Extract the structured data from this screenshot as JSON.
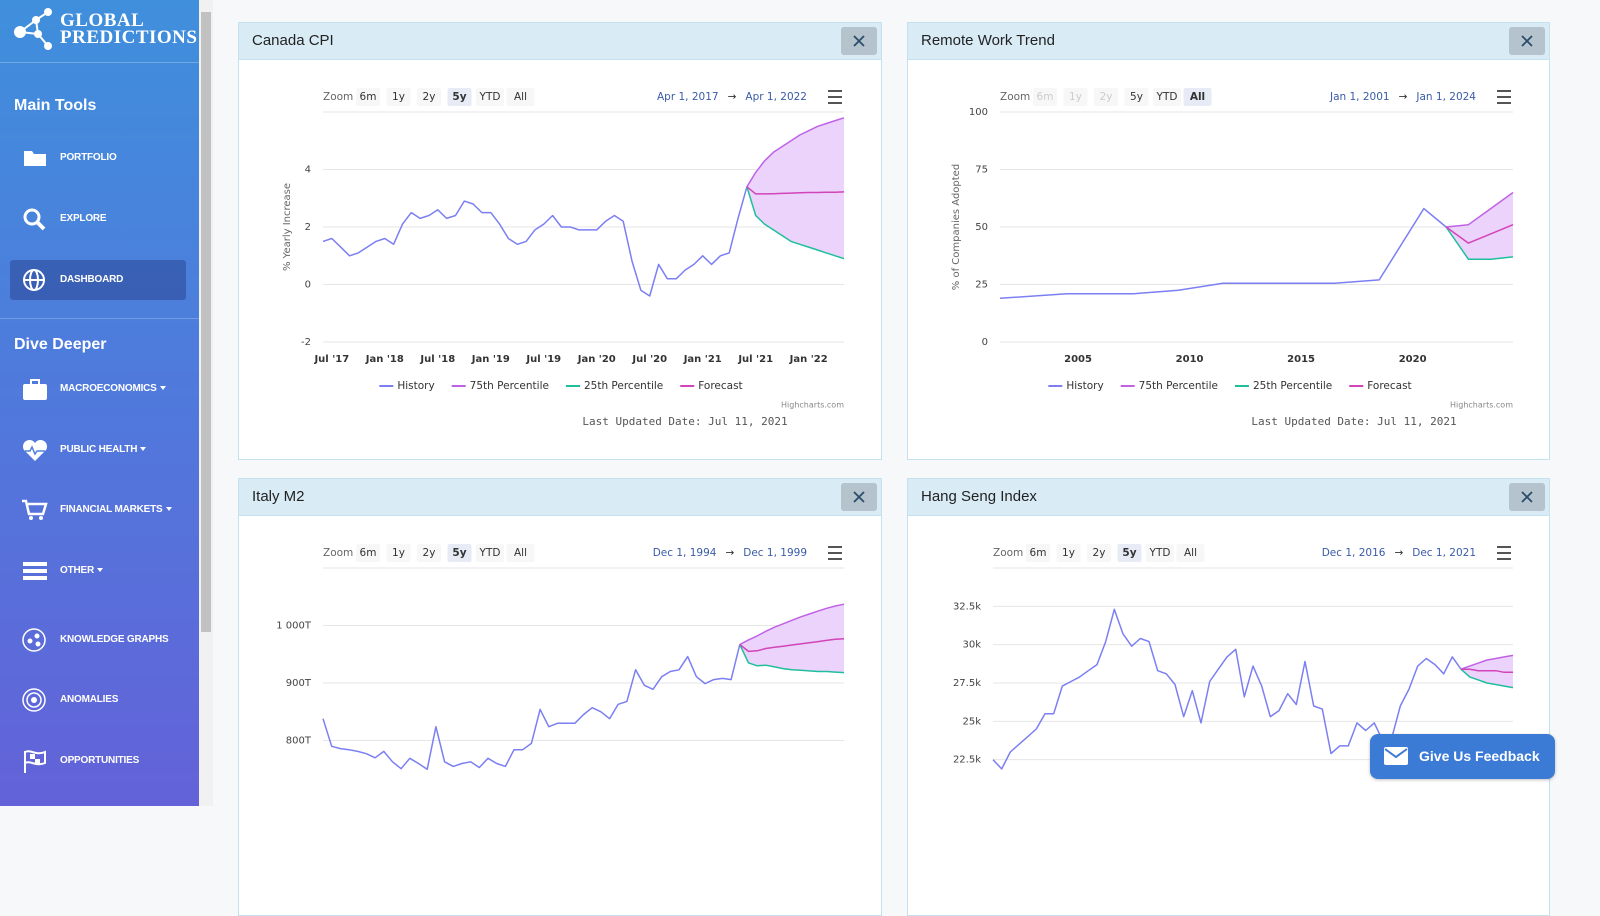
{
  "sidebar": {
    "logo": [
      "GLOBAL",
      "PREDICTIONS"
    ],
    "sections": [
      {
        "heading": "Main Tools",
        "items": [
          {
            "label": "PORTFOLIO"
          },
          {
            "label": "EXPLORE"
          },
          {
            "label": "DASHBOARD",
            "active": true
          }
        ]
      },
      {
        "heading": "Dive Deeper",
        "items": [
          {
            "label": "MACROECONOMICS",
            "dropdown": true
          },
          {
            "label": "PUBLIC HEALTH",
            "dropdown": true
          },
          {
            "label": "FINANCIAL MARKETS",
            "dropdown": true
          },
          {
            "label": "OTHER",
            "dropdown": true
          },
          {
            "label": "KNOWLEDGE GRAPHS"
          },
          {
            "label": "ANOMALIES"
          },
          {
            "label": "OPPORTUNITIES"
          }
        ]
      }
    ]
  },
  "feedback": "Give Us Feedback",
  "chart_data": [
    {
      "type": "line",
      "title": "Canada CPI",
      "zoom": {
        "label": "Zoom",
        "buttons": [
          "6m",
          "1y",
          "2y",
          "5y",
          "YTD",
          "All"
        ],
        "selected": 3,
        "disabled": []
      },
      "range": {
        "from": "Apr 1, 2017",
        "separator": "→",
        "to": "Apr 1, 2022"
      },
      "y_label": "% Yearly Increase",
      "xlim": [
        "2017-06",
        "2022-05"
      ],
      "xticks": [
        {
          "value": "2017-07",
          "label": "Jul '17"
        },
        {
          "value": "2018-01",
          "label": "Jan '18"
        },
        {
          "value": "2018-07",
          "label": "Jul '18"
        },
        {
          "value": "2019-01",
          "label": "Jan '19"
        },
        {
          "value": "2019-07",
          "label": "Jul '19"
        },
        {
          "value": "2020-01",
          "label": "Jan '20"
        },
        {
          "value": "2020-07",
          "label": "Jul '20"
        },
        {
          "value": "2021-01",
          "label": "Jan '21"
        },
        {
          "value": "2021-07",
          "label": "Jul '21"
        },
        {
          "value": "2022-01",
          "label": "Jan '22"
        }
      ],
      "ylim": [
        -2,
        6
      ],
      "yticks": [
        -2,
        0,
        2,
        4
      ],
      "grid": true,
      "band_color": "#ebd3fb",
      "series": [
        {
          "name": "History",
          "color": "#7b7ff2",
          "x": [
            "2017-06",
            "2017-07",
            "2017-08",
            "2017-09",
            "2017-10",
            "2017-11",
            "2017-12",
            "2018-01",
            "2018-02",
            "2018-03",
            "2018-04",
            "2018-05",
            "2018-06",
            "2018-07",
            "2018-08",
            "2018-09",
            "2018-10",
            "2018-11",
            "2018-12",
            "2019-01",
            "2019-02",
            "2019-03",
            "2019-04",
            "2019-05",
            "2019-06",
            "2019-07",
            "2019-08",
            "2019-09",
            "2019-10",
            "2019-11",
            "2019-12",
            "2020-01",
            "2020-02",
            "2020-03",
            "2020-04",
            "2020-05",
            "2020-06",
            "2020-07",
            "2020-08",
            "2020-09",
            "2020-10",
            "2020-11",
            "2020-12",
            "2021-01",
            "2021-02",
            "2021-03",
            "2021-04",
            "2021-05",
            "2021-06"
          ],
          "values": [
            1.5,
            1.6,
            1.3,
            1.0,
            1.1,
            1.3,
            1.5,
            1.6,
            1.4,
            2.1,
            2.5,
            2.3,
            2.4,
            2.6,
            2.3,
            2.4,
            2.9,
            2.8,
            2.5,
            2.5,
            2.1,
            1.6,
            1.4,
            1.5,
            1.9,
            2.1,
            2.4,
            2.0,
            2.0,
            1.9,
            1.9,
            1.9,
            2.2,
            2.4,
            2.2,
            0.8,
            -0.2,
            -0.4,
            0.7,
            0.2,
            0.2,
            0.5,
            0.7,
            1.0,
            0.7,
            1.0,
            1.1,
            2.3,
            3.4
          ]
        },
        {
          "name": "75th Percentile",
          "color": "#c062e6",
          "x": [
            "2021-06",
            "2021-07",
            "2021-08",
            "2021-09",
            "2021-10",
            "2021-11",
            "2021-12",
            "2022-01",
            "2022-02",
            "2022-03",
            "2022-04",
            "2022-05"
          ],
          "values": [
            3.4,
            3.9,
            4.3,
            4.6,
            4.8,
            5.0,
            5.2,
            5.35,
            5.5,
            5.6,
            5.7,
            5.8
          ]
        },
        {
          "name": "25th Percentile",
          "color": "#1fbf9d",
          "x": [
            "2021-06",
            "2021-07",
            "2021-08",
            "2021-09",
            "2021-10",
            "2021-11",
            "2021-12",
            "2022-01",
            "2022-02",
            "2022-03",
            "2022-04",
            "2022-05"
          ],
          "values": [
            3.4,
            2.4,
            2.1,
            1.9,
            1.7,
            1.5,
            1.4,
            1.3,
            1.2,
            1.1,
            1.0,
            0.9
          ]
        },
        {
          "name": "Forecast",
          "color": "#d244b9",
          "x": [
            "2021-06",
            "2021-07",
            "2021-08",
            "2021-09",
            "2021-10",
            "2021-11",
            "2021-12",
            "2022-01",
            "2022-02",
            "2022-03",
            "2022-04",
            "2022-05"
          ],
          "values": [
            3.4,
            3.15,
            3.15,
            3.16,
            3.17,
            3.18,
            3.19,
            3.2,
            3.2,
            3.21,
            3.21,
            3.22
          ]
        }
      ],
      "credits": "Highcharts.com",
      "updated": "Last Updated Date: Jul 11, 2021"
    },
    {
      "type": "line",
      "title": "Remote Work Trend",
      "zoom": {
        "label": "Zoom",
        "buttons": [
          "6m",
          "1y",
          "2y",
          "5y",
          "YTD",
          "All"
        ],
        "selected": 5,
        "disabled": [
          0,
          1,
          2
        ]
      },
      "range": {
        "from": "Jan 1, 2001",
        "separator": "→",
        "to": "Jan 1, 2024"
      },
      "y_label": "% of Companies Adopted",
      "xlim": [
        2001.5,
        2024.5
      ],
      "xticks": [
        2005,
        2010,
        2015,
        2020
      ],
      "ylim": [
        0,
        100
      ],
      "yticks": [
        0,
        25,
        50,
        75,
        100
      ],
      "grid": true,
      "band_color": "#ebd3fb",
      "series": [
        {
          "name": "History",
          "color": "#7b7ff2",
          "x": [
            2001.5,
            2004.5,
            2007.5,
            2009.5,
            2011.5,
            2016.5,
            2018.5,
            2020.5,
            2021.5
          ],
          "values": [
            19,
            21,
            21,
            22.5,
            25.5,
            25.5,
            27,
            58,
            50
          ]
        },
        {
          "name": "75th Percentile",
          "color": "#c062e6",
          "x": [
            2021.5,
            2022.5,
            2023.5,
            2024.5
          ],
          "values": [
            50,
            51,
            58,
            65
          ]
        },
        {
          "name": "25th Percentile",
          "color": "#1fbf9d",
          "x": [
            2021.5,
            2022.5,
            2023.5,
            2024.5
          ],
          "values": [
            50,
            36,
            36,
            37
          ]
        },
        {
          "name": "Forecast",
          "color": "#d244b9",
          "x": [
            2021.5,
            2022.5,
            2023.5,
            2024.5
          ],
          "values": [
            50,
            43,
            47,
            51
          ]
        }
      ],
      "credits": "Highcharts.com",
      "updated": "Last Updated Date: Jul 11, 2021"
    },
    {
      "type": "line",
      "title": "Italy M2",
      "zoom": {
        "label": "Zoom",
        "buttons": [
          "6m",
          "1y",
          "2y",
          "5y",
          "YTD",
          "All"
        ],
        "selected": 3,
        "disabled": []
      },
      "range": {
        "from": "Dec 1, 1994",
        "separator": "→",
        "to": "Dec 1, 1999"
      },
      "xlim": [
        "1994-12",
        "1999-12"
      ],
      "ylim": [
        700,
        1100
      ],
      "yticks": [
        {
          "value": 800,
          "label": "800T"
        },
        {
          "value": 900,
          "label": "900T"
        },
        {
          "value": 1000,
          "label": "1 000T"
        }
      ],
      "grid": true,
      "band_color": "#ebd3fb",
      "series": [
        {
          "color": "#7b7ff2",
          "x": [
            "1994-12",
            "1995-01",
            "1995-02",
            "1995-03",
            "1995-04",
            "1995-05",
            "1995-06",
            "1995-07",
            "1995-08",
            "1995-09",
            "1995-10",
            "1995-11",
            "1995-12",
            "1996-01",
            "1996-02",
            "1996-03",
            "1996-04",
            "1996-05",
            "1996-06",
            "1996-07",
            "1996-08",
            "1996-09",
            "1996-10",
            "1996-11",
            "1996-12",
            "1997-01",
            "1997-02",
            "1997-03",
            "1997-04",
            "1997-05",
            "1997-06",
            "1997-07",
            "1997-08",
            "1997-09",
            "1997-10",
            "1997-11",
            "1997-12",
            "1998-01",
            "1998-02",
            "1998-03",
            "1998-04",
            "1998-05",
            "1998-06",
            "1998-07",
            "1998-08",
            "1998-09",
            "1998-10",
            "1998-11",
            "1998-12"
          ],
          "values": [
            838,
            790,
            786,
            784,
            781,
            777,
            770,
            781,
            763,
            751,
            769,
            760,
            750,
            824,
            763,
            755,
            760,
            763,
            753,
            769,
            760,
            755,
            784,
            784,
            795,
            854,
            824,
            830,
            830,
            830,
            845,
            857,
            850,
            838,
            863,
            868,
            923,
            896,
            889,
            911,
            920,
            923,
            946,
            911,
            899,
            906,
            908,
            906,
            967
          ]
        },
        {
          "color": "#c062e6",
          "x": [
            "1998-12",
            "1999-01",
            "1999-02",
            "1999-03",
            "1999-04",
            "1999-05",
            "1999-06",
            "1999-07",
            "1999-08",
            "1999-09",
            "1999-10",
            "1999-11",
            "1999-12"
          ],
          "values": [
            967,
            975,
            982,
            990,
            997,
            1003,
            1009,
            1015,
            1020,
            1025,
            1030,
            1034,
            1037
          ]
        },
        {
          "color": "#1fbf9d",
          "x": [
            "1998-12",
            "1999-01",
            "1999-02",
            "1999-03",
            "1999-04",
            "1999-05",
            "1999-06",
            "1999-07",
            "1999-08",
            "1999-09",
            "1999-10",
            "1999-11",
            "1999-12"
          ],
          "values": [
            967,
            935,
            930,
            931,
            928,
            925,
            923,
            922,
            921,
            920,
            920,
            919,
            918
          ]
        },
        {
          "color": "#d244b9",
          "x": [
            "1998-12",
            "1999-01",
            "1999-02",
            "1999-03",
            "1999-04",
            "1999-05",
            "1999-06",
            "1999-07",
            "1999-08",
            "1999-09",
            "1999-10",
            "1999-11",
            "1999-12"
          ],
          "values": [
            967,
            955,
            956,
            960,
            962,
            964,
            966,
            968,
            970,
            972,
            974,
            976,
            977
          ]
        }
      ]
    },
    {
      "type": "line",
      "title": "Hang Seng Index",
      "zoom": {
        "label": "Zoom",
        "buttons": [
          "6m",
          "1y",
          "2y",
          "5y",
          "YTD",
          "All"
        ],
        "selected": 3,
        "disabled": []
      },
      "range": {
        "from": "Dec 1, 2016",
        "separator": "→",
        "to": "Dec 1, 2021"
      },
      "xlim": [
        "2016-12",
        "2021-12"
      ],
      "ylim": [
        20000,
        35000
      ],
      "yticks": [
        {
          "value": 22500,
          "label": "22.5k"
        },
        {
          "value": 25000,
          "label": "25k"
        },
        {
          "value": 27500,
          "label": "27.5k"
        },
        {
          "value": 30000,
          "label": "30k"
        },
        {
          "value": 32500,
          "label": "32.5k"
        }
      ],
      "grid": true,
      "band_color": "#ebd3fb",
      "series": [
        {
          "color": "#7b7ff2",
          "x": [
            "2016-12",
            "2017-01",
            "2017-02",
            "2017-03",
            "2017-04",
            "2017-05",
            "2017-06",
            "2017-07",
            "2017-08",
            "2017-09",
            "2017-10",
            "2017-11",
            "2017-12",
            "2018-01",
            "2018-02",
            "2018-03",
            "2018-04",
            "2018-05",
            "2018-06",
            "2018-07",
            "2018-08",
            "2018-09",
            "2018-10",
            "2018-11",
            "2018-12",
            "2019-01",
            "2019-02",
            "2019-03",
            "2019-04",
            "2019-05",
            "2019-06",
            "2019-07",
            "2019-08",
            "2019-09",
            "2019-10",
            "2019-11",
            "2019-12",
            "2020-01",
            "2020-02",
            "2020-03",
            "2020-04",
            "2020-05",
            "2020-06",
            "2020-07",
            "2020-08",
            "2020-09",
            "2020-10",
            "2020-11",
            "2020-12",
            "2021-01",
            "2021-02",
            "2021-03",
            "2021-04",
            "2021-05",
            "2021-06"
          ],
          "values": [
            22500,
            21900,
            23000,
            23500,
            24000,
            24500,
            25500,
            25500,
            27300,
            27600,
            27900,
            28300,
            28700,
            30200,
            32300,
            30700,
            29900,
            30400,
            30200,
            28300,
            28100,
            27400,
            25300,
            27000,
            24900,
            27600,
            28400,
            29200,
            29700,
            26600,
            28600,
            27300,
            25300,
            25700,
            26800,
            26100,
            28900,
            26000,
            25800,
            22900,
            23400,
            23400,
            24900,
            24400,
            24900,
            23700,
            23900,
            26000,
            27100,
            28600,
            29100,
            28700,
            28100,
            29200,
            28400
          ]
        },
        {
          "color": "#c062e6",
          "x": [
            "2021-06",
            "2021-07",
            "2021-08",
            "2021-09",
            "2021-10",
            "2021-11",
            "2021-12"
          ],
          "values": [
            28400,
            28600,
            28800,
            29000,
            29100,
            29200,
            29300
          ]
        },
        {
          "color": "#1fbf9d",
          "x": [
            "2021-06",
            "2021-07",
            "2021-08",
            "2021-09",
            "2021-10",
            "2021-11",
            "2021-12"
          ],
          "values": [
            28400,
            27900,
            27700,
            27500,
            27400,
            27300,
            27200
          ]
        },
        {
          "color": "#d244b9",
          "x": [
            "2021-06",
            "2021-07",
            "2021-08",
            "2021-09",
            "2021-10",
            "2021-11",
            "2021-12"
          ],
          "values": [
            28400,
            28400,
            28300,
            28300,
            28300,
            28200,
            28200
          ]
        }
      ]
    }
  ]
}
